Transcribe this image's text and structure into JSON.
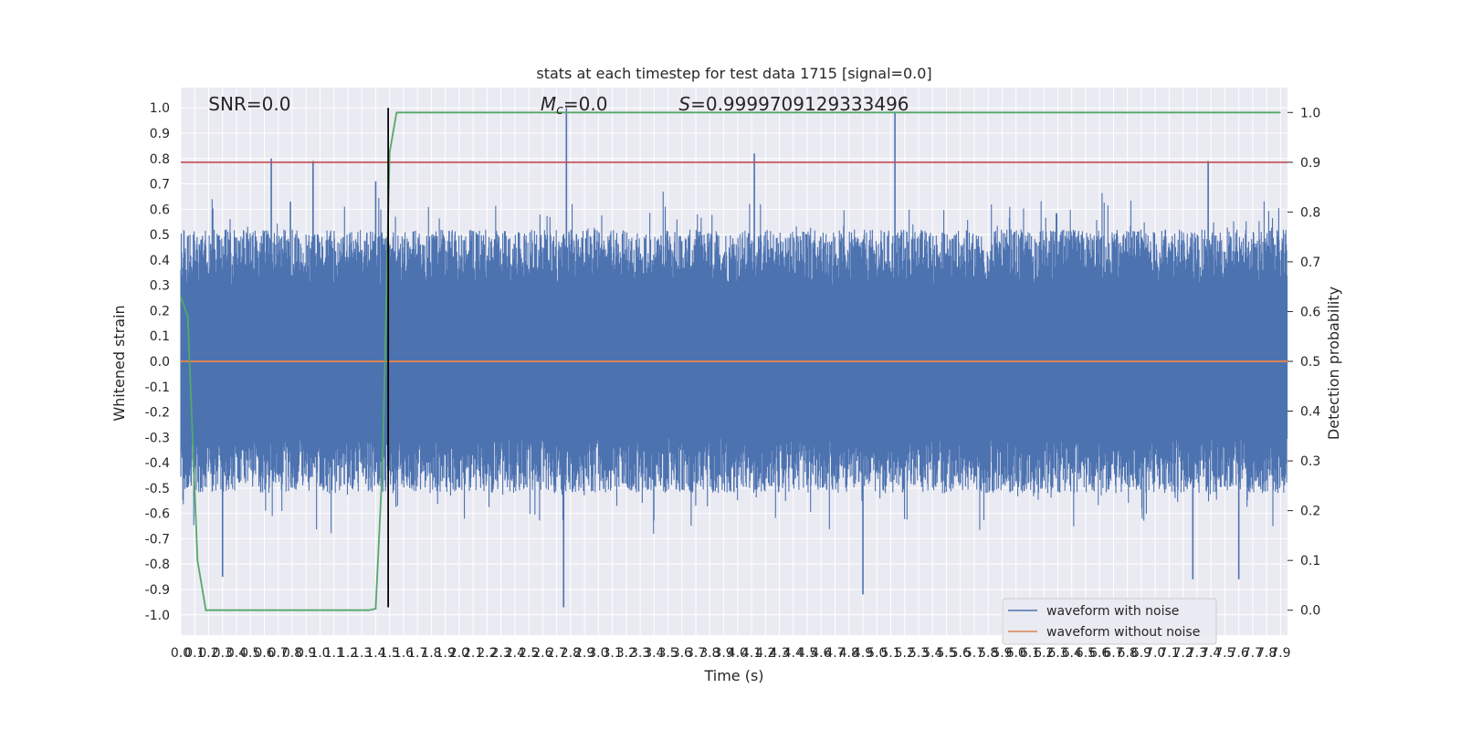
{
  "chart_data": {
    "type": "line",
    "title": "stats at each timestep for test data 1715 [signal=0.0]",
    "xlabel": "Time (s)",
    "ylabel": "Whitened strain",
    "y2label": "Detection probability",
    "xlim": [
      0.0,
      7.95
    ],
    "ylim": [
      -1.08,
      1.08
    ],
    "y2lim": [
      -0.05,
      1.05
    ],
    "x_ticks": [
      0.0,
      0.1,
      0.2,
      0.3,
      0.4,
      0.5,
      0.6,
      0.7,
      0.8,
      0.9,
      1.0,
      1.1,
      1.2,
      1.3,
      1.4,
      1.5,
      1.6,
      1.7,
      1.8,
      1.9,
      2.0,
      2.1,
      2.2,
      2.3,
      2.4,
      2.5,
      2.6,
      2.7,
      2.8,
      2.9,
      3.0,
      3.1,
      3.2,
      3.3,
      3.4,
      3.5,
      3.6,
      3.7,
      3.8,
      3.9,
      4.0,
      4.1,
      4.2,
      4.3,
      4.4,
      4.5,
      4.6,
      4.7,
      4.8,
      4.9,
      5.0,
      5.1,
      5.2,
      5.3,
      5.4,
      5.5,
      5.6,
      5.7,
      5.8,
      5.9,
      6.0,
      6.1,
      6.2,
      6.3,
      6.4,
      6.5,
      6.6,
      6.7,
      6.8,
      6.9,
      7.0,
      7.1,
      7.2,
      7.3,
      7.4,
      7.5,
      7.6,
      7.7,
      7.8,
      7.9
    ],
    "y_ticks": [
      -1.0,
      -0.9,
      -0.8,
      -0.7,
      -0.6,
      -0.5,
      -0.4,
      -0.3,
      -0.2,
      -0.1,
      0.0,
      0.1,
      0.2,
      0.3,
      0.4,
      0.5,
      0.6,
      0.7,
      0.8,
      0.9,
      1.0
    ],
    "y2_ticks": [
      0.0,
      0.1,
      0.2,
      0.3,
      0.4,
      0.5,
      0.6,
      0.7,
      0.8,
      0.9,
      1.0
    ],
    "series": [
      {
        "name": "waveform with noise",
        "axis": "left",
        "color": "#4c72b0",
        "description_range": [
          -0.97,
          1.0
        ],
        "peaks": [
          {
            "x": 2.77,
            "y": 1.0
          },
          {
            "x": 2.75,
            "y": -0.97
          },
          {
            "x": 5.13,
            "y": 0.98
          },
          {
            "x": 4.12,
            "y": 0.82
          },
          {
            "x": 4.9,
            "y": -0.92
          },
          {
            "x": 0.3,
            "y": -0.85
          },
          {
            "x": 7.27,
            "y": -0.86
          },
          {
            "x": 7.6,
            "y": -0.86
          },
          {
            "x": 0.65,
            "y": 0.8
          },
          {
            "x": 0.95,
            "y": 0.79
          },
          {
            "x": 7.38,
            "y": 0.79
          },
          {
            "x": 1.4,
            "y": 0.71
          }
        ]
      },
      {
        "name": "waveform without noise",
        "axis": "left",
        "color": "#dd8452",
        "constant": 0.0
      },
      {
        "name": "",
        "axis": "right",
        "color": "#55a868",
        "x": [
          0.0,
          0.05,
          0.12,
          0.18,
          1.35,
          1.4,
          1.45,
          1.5,
          1.55,
          7.9
        ],
        "y": [
          0.63,
          0.59,
          0.1,
          0.0,
          0.0,
          0.003,
          0.3,
          0.92,
          1.0,
          1.0
        ]
      }
    ],
    "hlines": [
      {
        "y": 0.9,
        "axis": "right",
        "color": "#c44e52"
      }
    ],
    "vlines": [
      {
        "x": 1.49,
        "color": "#000000",
        "y_range": [
          -0.97,
          1.0
        ]
      }
    ],
    "annotations": [
      {
        "text": "SNR=0.0",
        "x_frac": 0.025
      },
      {
        "text": "M_c=0.0",
        "x_frac": 0.325,
        "italic_symbol": "M",
        "subscript": "c",
        "rest": "=0.0"
      },
      {
        "text": "S=0.9999709129333496",
        "x_frac": 0.45,
        "italic_symbol": "S",
        "rest": "=0.9999709129333496"
      }
    ],
    "legend": {
      "placement": "lower-right",
      "entries": [
        "waveform with noise",
        "waveform without noise"
      ]
    },
    "grid": true,
    "colors": {
      "background": "#eaeaf2",
      "grid": "#ffffff",
      "noise": "#4c72b0",
      "clean": "#dd8452",
      "prob": "#55a868",
      "threshold": "#c44e52"
    }
  }
}
